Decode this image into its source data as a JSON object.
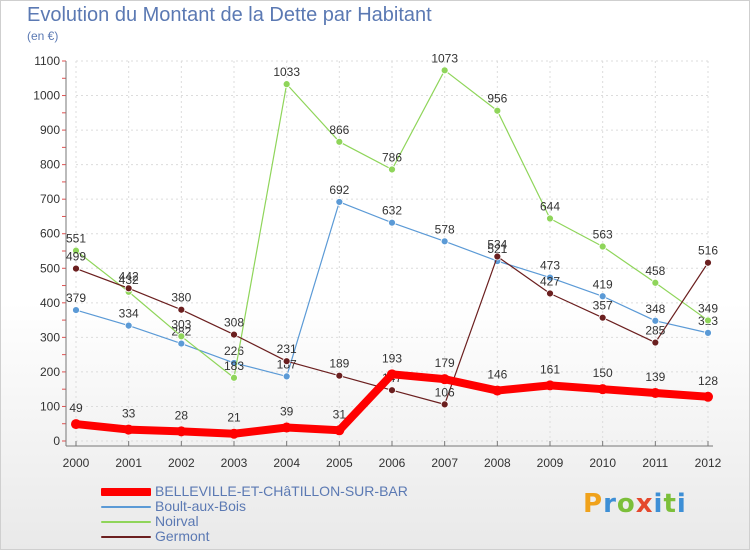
{
  "title": "Evolution du Montant de la Dette par Habitant",
  "unit": "(en €)",
  "brand": "Proxiti",
  "chart_data": {
    "type": "line",
    "title": "Evolution du Montant de la Dette par Habitant",
    "ylabel": "(en €)",
    "xlabel": "",
    "x": [
      2000,
      2001,
      2002,
      2003,
      2004,
      2005,
      2006,
      2007,
      2008,
      2009,
      2010,
      2011,
      2012
    ],
    "ylim": [
      0,
      1100
    ],
    "yticks": [
      0,
      100,
      200,
      300,
      400,
      500,
      600,
      700,
      800,
      900,
      1000,
      1100
    ],
    "grid": true,
    "legend": "bottom-left",
    "series": [
      {
        "name": "Boult-aux-Bois",
        "color": "#5b9ad6",
        "values": [
          379,
          334,
          282,
          226,
          187,
          692,
          632,
          578,
          521,
          473,
          419,
          348,
          313
        ]
      },
      {
        "name": "Noirval",
        "color": "#8fd55a",
        "values": [
          551,
          432,
          303,
          183,
          1033,
          866,
          786,
          1073,
          956,
          644,
          563,
          458,
          349
        ]
      },
      {
        "name": "Germont",
        "color": "#6b1f1f",
        "values": [
          499,
          442,
          380,
          308,
          231,
          189,
          147,
          106,
          534,
          427,
          357,
          285,
          516
        ]
      },
      {
        "name": "BELLEVILLE-ET-CHâTILLON-SUR-BAR",
        "color": "#ff0000",
        "values": [
          49,
          33,
          28,
          21,
          39,
          31,
          193,
          179,
          146,
          161,
          150,
          139,
          128
        ]
      }
    ]
  }
}
